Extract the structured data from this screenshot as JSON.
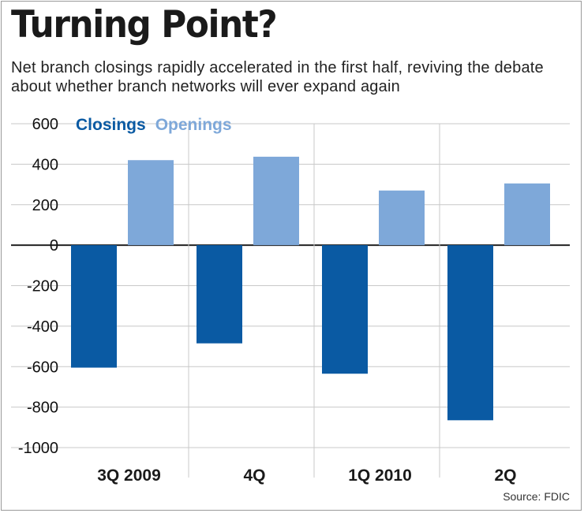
{
  "title": "Turning Point?",
  "subtitle": "Net branch closings rapidly accelerated in the first half, reviving the debate about whether branch networks will ever expand again",
  "source": "Source: FDIC",
  "chart_data": {
    "type": "bar",
    "title": "Turning Point?",
    "subtitle": "Net branch closings rapidly accelerated in the first half, reviving the debate about whether branch networks will ever expand again",
    "categories": [
      "3Q 2009",
      "4Q",
      "1Q 2010",
      "2Q"
    ],
    "series": [
      {
        "name": "Closings",
        "color": "#0a5aa3",
        "values": [
          -605,
          -485,
          -635,
          -865
        ]
      },
      {
        "name": "Openings",
        "color": "#7ea8d9",
        "values": [
          420,
          437,
          270,
          305
        ]
      }
    ],
    "ylim": [
      -1000,
      600
    ],
    "yticks": [
      600,
      400,
      200,
      0,
      -200,
      -400,
      -600,
      -800,
      -1000
    ],
    "xlabel": "",
    "ylabel": "",
    "grid": true,
    "legend_position": "top-left"
  }
}
